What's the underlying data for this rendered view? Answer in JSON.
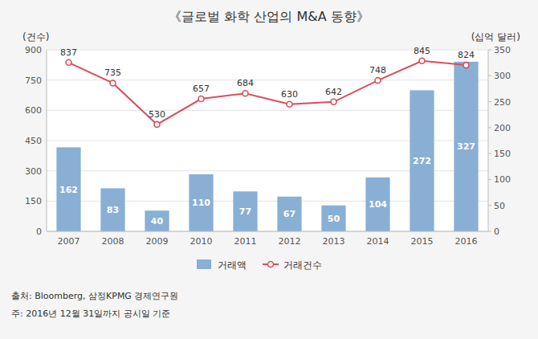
{
  "chart_data": {
    "type": "bar",
    "title": "《글로벌 화학 산업의 M&A 동향》",
    "categories": [
      "2007",
      "2008",
      "2009",
      "2010",
      "2011",
      "2012",
      "2013",
      "2014",
      "2015",
      "2016"
    ],
    "series": [
      {
        "name": "거래액",
        "type": "bar",
        "axis": "y2",
        "color": "#89afd4",
        "values": [
          162,
          83,
          40,
          110,
          77,
          67,
          50,
          104,
          272,
          327
        ]
      },
      {
        "name": "거래건수",
        "type": "line",
        "marker": "circle",
        "color": "#d94f5c",
        "values": [
          837,
          735,
          530,
          657,
          684,
          630,
          642,
          748,
          845,
          824
        ]
      }
    ],
    "y_label": "(건수)",
    "y2_label": "(십억 달러)",
    "ylim": [
      0,
      900
    ],
    "yticks": [
      0,
      150,
      300,
      450,
      600,
      750,
      900
    ],
    "y2lim": [
      0,
      350
    ],
    "y2ticks": [
      0,
      50,
      100,
      150,
      200,
      250,
      300,
      350
    ],
    "grid": true,
    "legend": "bottom",
    "data_labels": true,
    "annotations": [
      "출처: Bloomberg,  삼정KPMG  경제연구원",
      "주: 2016년  12월  31일까지  공시일  기준"
    ]
  }
}
